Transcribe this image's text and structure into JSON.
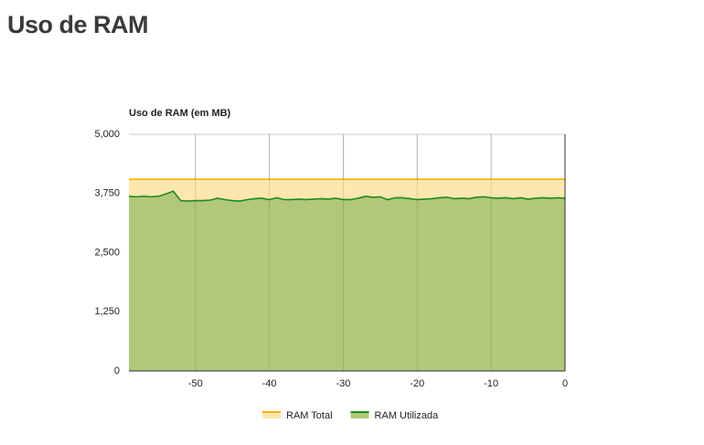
{
  "page": {
    "heading": "Uso de RAM"
  },
  "chart_data": {
    "type": "area",
    "title": "Uso de RAM (em MB)",
    "x": [
      -59,
      -58,
      -57,
      -56,
      -55,
      -54,
      -53,
      -52,
      -51,
      -50,
      -49,
      -48,
      -47,
      -46,
      -45,
      -44,
      -43,
      -42,
      -41,
      -40,
      -39,
      -38,
      -37,
      -36,
      -35,
      -34,
      -33,
      -32,
      -31,
      -30,
      -29,
      -28,
      -27,
      -26,
      -25,
      -24,
      -23,
      -22,
      -21,
      -20,
      -19,
      -18,
      -17,
      -16,
      -15,
      -14,
      -13,
      -12,
      -11,
      -10,
      -9,
      -8,
      -7,
      -6,
      -5,
      -4,
      -3,
      -2,
      -1,
      0
    ],
    "series": [
      {
        "name": "RAM Total",
        "color": "#f4b400",
        "fill": "#fde7ae",
        "values": [
          4050,
          4050,
          4050,
          4050,
          4050,
          4050,
          4050,
          4050,
          4050,
          4050,
          4050,
          4050,
          4050,
          4050,
          4050,
          4050,
          4050,
          4050,
          4050,
          4050,
          4050,
          4050,
          4050,
          4050,
          4050,
          4050,
          4050,
          4050,
          4050,
          4050,
          4050,
          4050,
          4050,
          4050,
          4050,
          4050,
          4050,
          4050,
          4050,
          4050,
          4050,
          4050,
          4050,
          4050,
          4050,
          4050,
          4050,
          4050,
          4050,
          4050,
          4050,
          4050,
          4050,
          4050,
          4050,
          4050,
          4050,
          4050,
          4050,
          4050
        ]
      },
      {
        "name": "RAM Utilizada",
        "color": "#1e8a1a",
        "fill": "#b1c87b",
        "values": [
          3690,
          3680,
          3690,
          3680,
          3690,
          3740,
          3800,
          3600,
          3590,
          3600,
          3600,
          3610,
          3650,
          3620,
          3600,
          3590,
          3620,
          3640,
          3650,
          3620,
          3660,
          3620,
          3620,
          3630,
          3620,
          3630,
          3640,
          3630,
          3650,
          3620,
          3620,
          3650,
          3690,
          3670,
          3680,
          3620,
          3660,
          3660,
          3640,
          3620,
          3630,
          3640,
          3660,
          3670,
          3640,
          3650,
          3640,
          3670,
          3680,
          3660,
          3650,
          3660,
          3640,
          3660,
          3630,
          3650,
          3660,
          3650,
          3660,
          3650
        ]
      }
    ],
    "xlim": [
      -59,
      0
    ],
    "xticks": [
      -50,
      -40,
      -30,
      -20,
      -10,
      0
    ],
    "ylim": [
      0,
      5000
    ],
    "yticks": [
      0,
      {
        "value": 1250,
        "label": "1,250"
      },
      {
        "value": 2500,
        "label": "2,500"
      },
      {
        "value": 3750,
        "label": "3,750"
      },
      {
        "value": 5000,
        "label": "5,000"
      }
    ],
    "grid": true,
    "legend": "bottom"
  }
}
